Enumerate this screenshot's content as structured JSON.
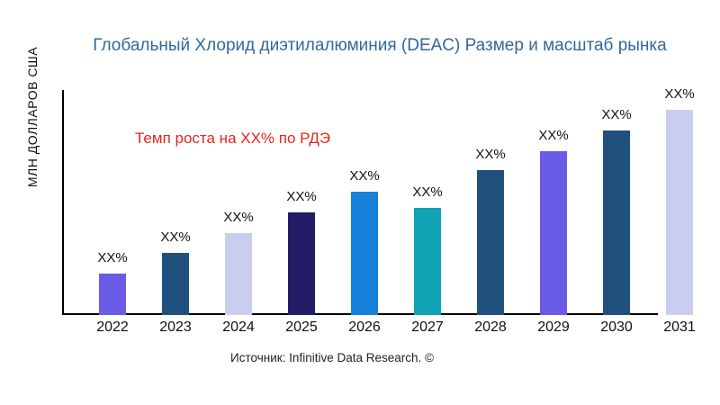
{
  "title": "Глобальный Хлорид диэтилалюминия (DEAC) Размер и масштаб рынка",
  "title_color": "#31689E",
  "y_axis_label": "МЛН ДОЛЛАРОВ США",
  "annotation": {
    "text": "Темп роста на XX% по РДЭ",
    "color": "#E5251D"
  },
  "source": "Источник: Infinitive Data Research. ©",
  "chart_data": {
    "type": "bar",
    "title": "Глобальный Хлорид диэтилалюминия (DEAC) Размер и масштаб рынка",
    "xlabel": "",
    "ylabel": "МЛН ДОЛЛАРОВ США",
    "categories": [
      "2022",
      "2023",
      "2024",
      "2025",
      "2026",
      "2027",
      "2028",
      "2029",
      "2030",
      "2031"
    ],
    "values": [
      46,
      69,
      91,
      114,
      137,
      119,
      161,
      182,
      205,
      228
    ],
    "values_unit": "relative height (y-axis has no numeric ticks; all bars labeled XX%)",
    "bar_labels": [
      "XX%",
      "XX%",
      "XX%",
      "XX%",
      "XX%",
      "XX%",
      "XX%",
      "XX%",
      "XX%",
      "XX%"
    ],
    "bar_colors": [
      "#6B5CE7",
      "#20517E",
      "#C9CDF0",
      "#221D66",
      "#1581DB",
      "#12A3B4",
      "#20517E",
      "#6B5CE7",
      "#20517E",
      "#C9CDF0"
    ],
    "grid": false,
    "legend": "none",
    "axis_color": "#000000"
  }
}
